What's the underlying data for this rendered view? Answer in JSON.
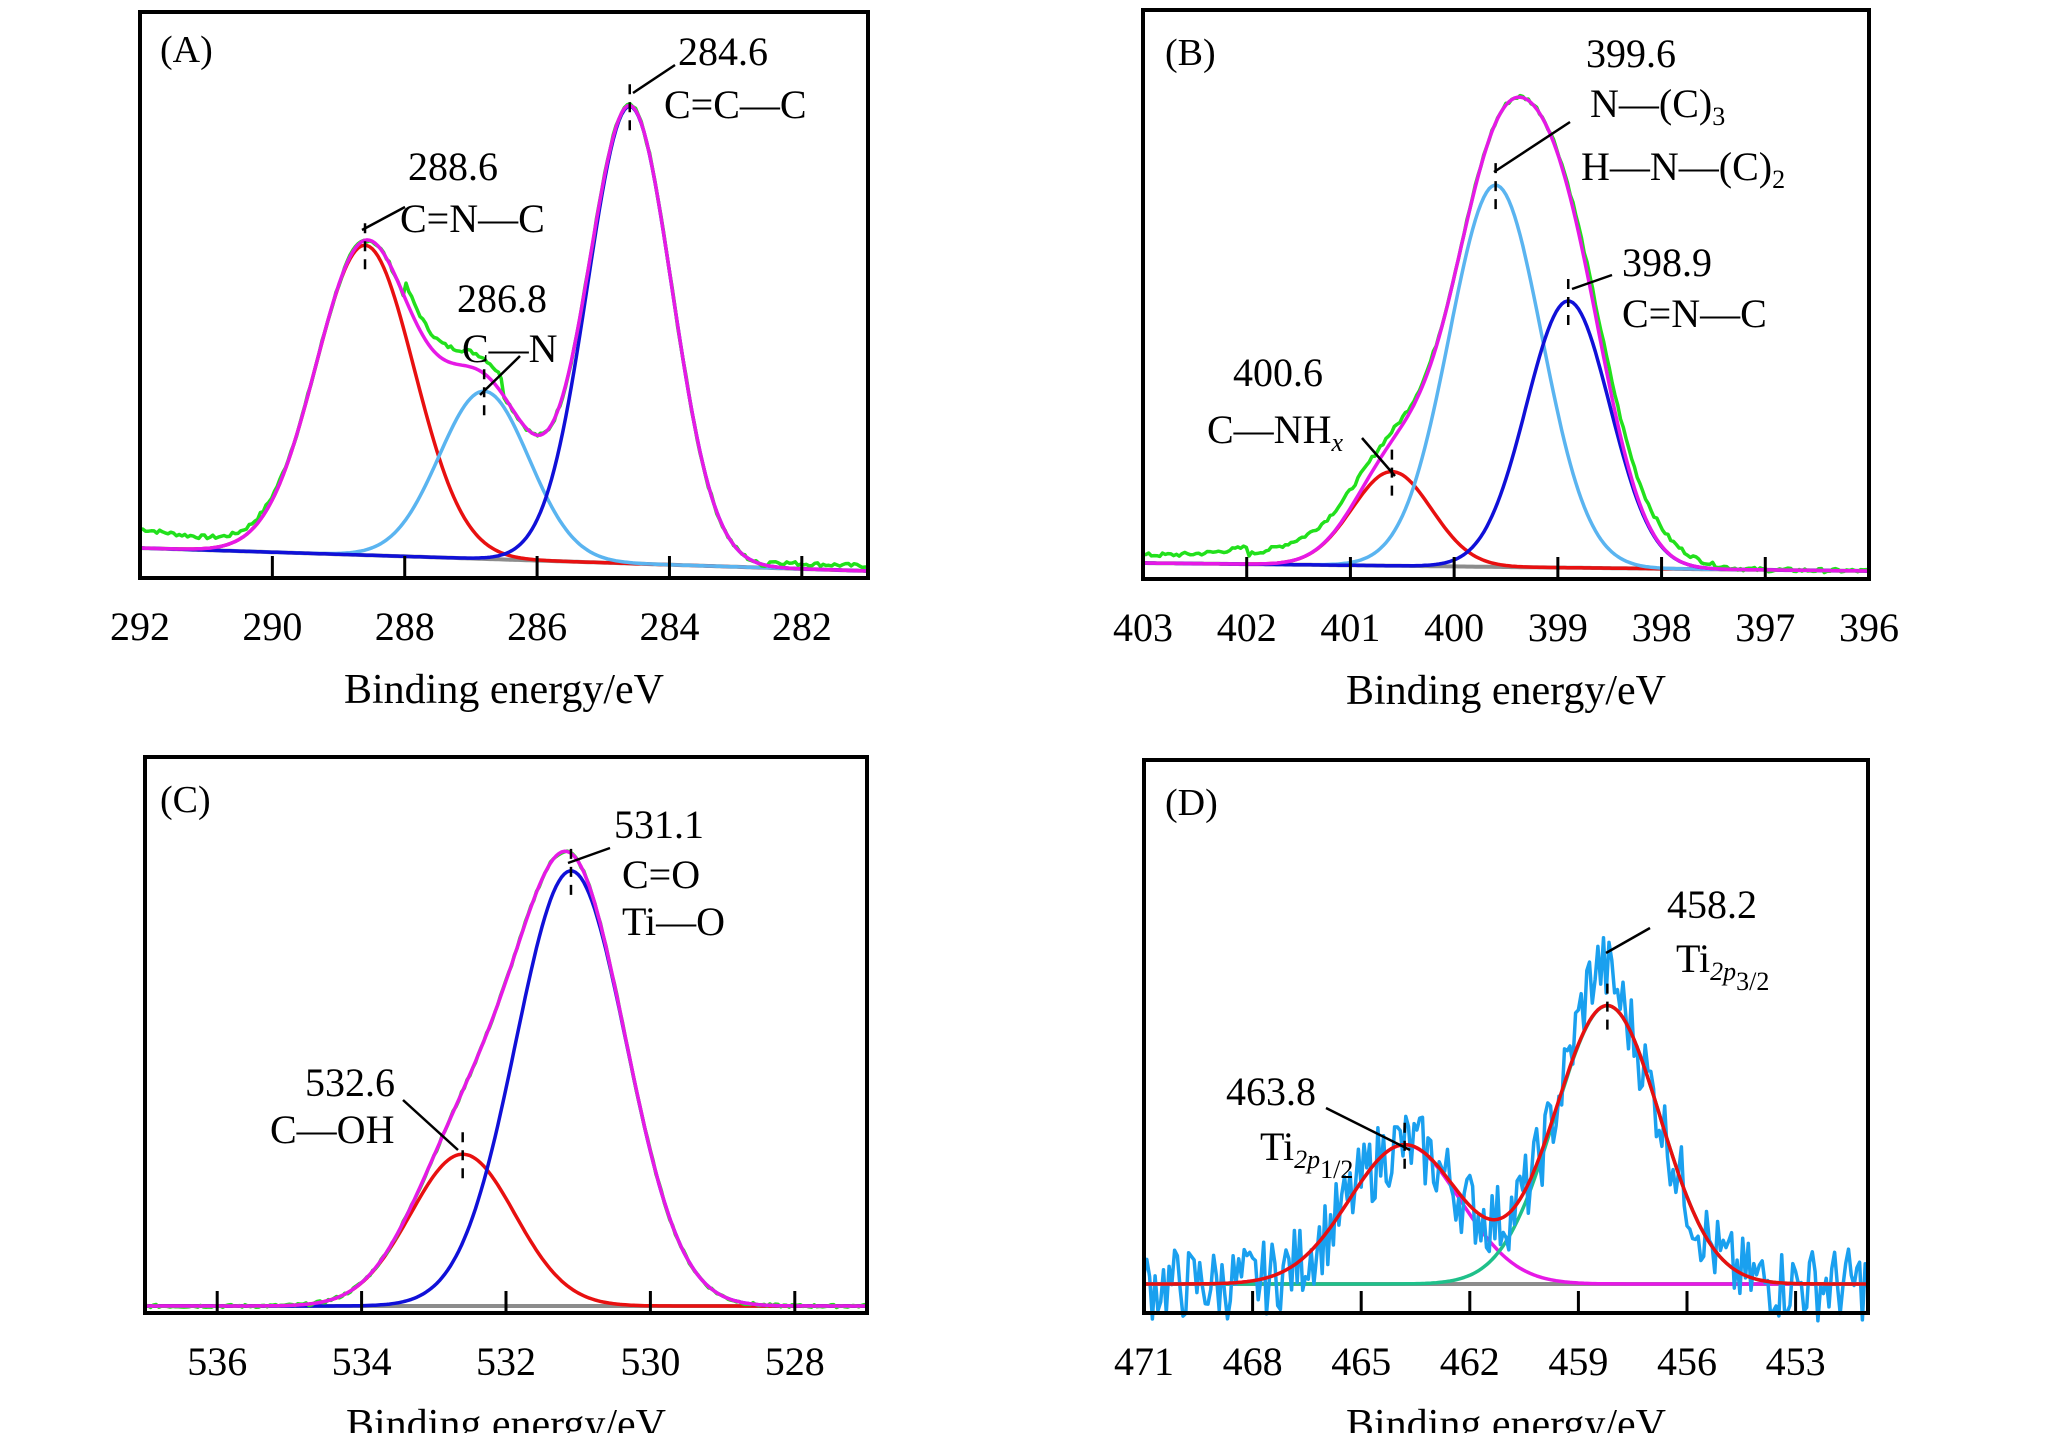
{
  "chart_data": [
    {
      "panel": "(A)",
      "type": "line",
      "xlabel": "Binding energy/eV",
      "ylabel": "",
      "xlim": [
        292,
        281
      ],
      "xticks": [
        292,
        290,
        288,
        286,
        284,
        282
      ],
      "colors": {
        "raw": "#22e01c",
        "envelope": "#e619e6",
        "baseline": "#8c8c8c"
      },
      "components": [
        {
          "center": 288.6,
          "height": 0.61,
          "fwhm": 1.75,
          "color": "#e81010",
          "label_value": "288.6",
          "label_species": "C=N—C"
        },
        {
          "center": 286.8,
          "height": 0.33,
          "fwhm": 1.6,
          "color": "#5ab4f0",
          "label_value": "286.8",
          "label_species": "C—N"
        },
        {
          "center": 284.6,
          "height": 0.9,
          "fwhm": 1.5,
          "color": "#1010d8",
          "label_value": "284.6",
          "label_species": "C=C—C"
        }
      ],
      "baseline": [
        0.05,
        0.005
      ]
    },
    {
      "panel": "(B)",
      "type": "line",
      "xlabel": "Binding energy/eV",
      "ylabel": "",
      "xlim": [
        403,
        396
      ],
      "xticks": [
        403,
        402,
        401,
        400,
        399,
        398,
        397,
        396
      ],
      "colors": {
        "raw": "#22e01c",
        "envelope": "#e619e6",
        "baseline": "#8c8c8c"
      },
      "components": [
        {
          "center": 400.6,
          "height": 0.18,
          "fwhm": 0.9,
          "color": "#e81010",
          "label_value": "400.6",
          "label_species": "C—NH",
          "label_sub": "x"
        },
        {
          "center": 399.6,
          "height": 0.73,
          "fwhm": 1.05,
          "color": "#5ab4f0",
          "label_value": "399.6",
          "label_species": "N—(C)",
          "label_sub": "3",
          "label_species2": "H—N—(C)",
          "label_sub2": "2"
        },
        {
          "center": 398.9,
          "height": 0.51,
          "fwhm": 0.95,
          "color": "#1010d8",
          "label_value": "398.9",
          "label_species": "C=N—C"
        }
      ],
      "baseline": [
        0.02,
        0.005
      ]
    },
    {
      "panel": "(C)",
      "type": "line",
      "xlabel": "Binding energy/eV",
      "ylabel": "",
      "xlim": [
        537,
        527
      ],
      "xticks": [
        536,
        534,
        532,
        530,
        528
      ],
      "colors": {
        "raw": "#22e01c",
        "envelope": "#e619e6",
        "baseline": "#8c8c8c"
      },
      "components": [
        {
          "center": 532.6,
          "height": 0.3,
          "fwhm": 1.7,
          "color": "#e81010",
          "label_value": "532.6",
          "label_species": "C—OH"
        },
        {
          "center": 531.1,
          "height": 0.86,
          "fwhm": 1.8,
          "color": "#1010d8",
          "label_value": "531.1",
          "label_species": "C=O",
          "label_species2": "Ti—O"
        }
      ],
      "baseline": [
        0.01,
        0.01
      ]
    },
    {
      "panel": "(D)",
      "type": "line",
      "xlabel": "Binding energy/eV",
      "ylabel": "",
      "xlim": [
        471,
        451
      ],
      "xticks": [
        471,
        468,
        465,
        462,
        459,
        456,
        453
      ],
      "colors": {
        "raw": "#1aa0ef",
        "envelope": "#e81010",
        "baseline": "#8c8c8c"
      },
      "components": [
        {
          "center": 463.8,
          "height": 0.3,
          "fwhm": 3.6,
          "color": "#e619e6",
          "label_value": "463.8",
          "label_species": "Ti",
          "label_sub": "2p",
          "label_sub_sub": "1/2"
        },
        {
          "center": 458.2,
          "height": 0.6,
          "fwhm": 3.4,
          "color": "#1fc08a",
          "label_value": "458.2",
          "label_species": "Ti",
          "label_sub": "2p",
          "label_sub_sub": "3/2"
        }
      ],
      "baseline": [
        0.05,
        0.05
      ]
    }
  ]
}
